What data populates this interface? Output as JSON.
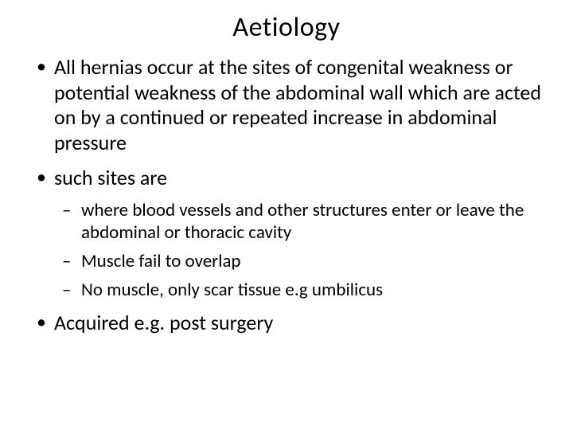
{
  "slide": {
    "title": "Aetiology",
    "bullets": [
      {
        "text": "All hernias occur at the sites of congenital weakness or potential weakness of the abdominal wall which are acted on by a continued or repeated increase in abdominal pressure"
      },
      {
        "text": "such sites are",
        "sub": [
          " where blood vessels and other structures enter or leave the abdominal or thoracic cavity",
          "Muscle fail to overlap",
          "No muscle, only scar tissue e.g umbilicus"
        ]
      },
      {
        "text": "Acquired e.g. post surgery"
      }
    ]
  },
  "style": {
    "background_color": "#ffffff",
    "text_color": "#000000",
    "font_family": "Calibri",
    "title_fontsize": 34,
    "level1_fontsize": 26,
    "level2_fontsize": 23,
    "slide_width": 720,
    "slide_height": 540
  }
}
